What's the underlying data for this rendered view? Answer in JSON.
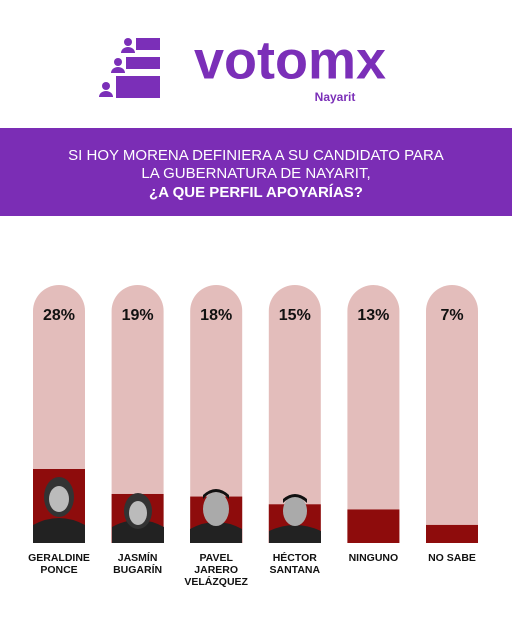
{
  "header": {
    "brand": "votomx",
    "region": "Nayarit",
    "question_lines": [
      "SI HOY MORENA DEFINIERA A SU CANDIDATO PARA",
      "LA GUBERNATURA DE NAYARIT,",
      "¿A QUE PERFIL APOYARÍAS?"
    ]
  },
  "chart_data": {
    "type": "bar",
    "categories": [
      "GERALDINE PONCE",
      "JASMÍN BUGARÍN",
      "PAVEL JARERO VELÁZQUEZ",
      "HÉCTOR SANTANA",
      "NINGUNO",
      "NO SABE"
    ],
    "values": [
      28,
      19,
      18,
      15,
      13,
      7
    ],
    "value_labels": [
      "28%",
      "19%",
      "18%",
      "15%",
      "13%",
      "7%"
    ],
    "color": "#8e0c0c",
    "track_color": "#e3bdbb",
    "ylim": [
      0,
      100
    ]
  }
}
